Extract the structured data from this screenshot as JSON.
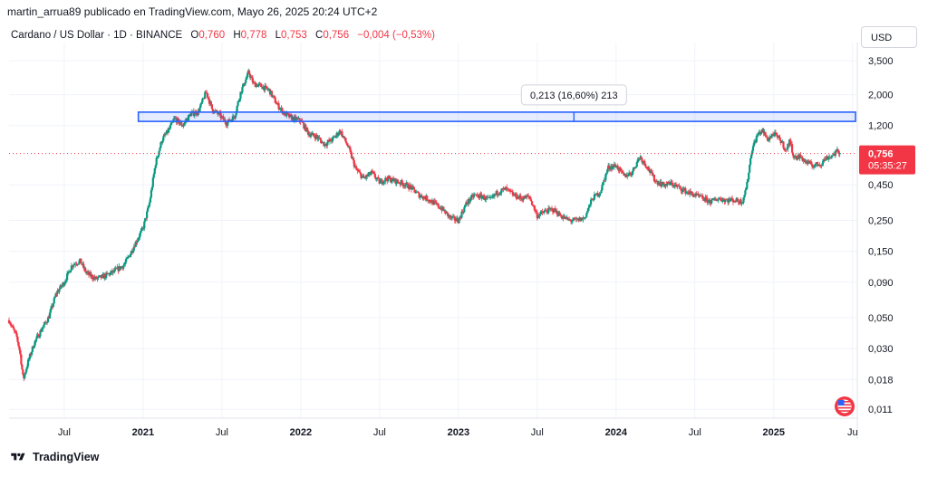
{
  "header": {
    "publisher_line": "martin_arrua89 publicado en TradingView.com, Mayo 26, 2025 20:24 UTC+2"
  },
  "symbol": {
    "name": "Cardano / US Dollar · 1D · BINANCE",
    "o_label": "O",
    "o_value": "0,760",
    "h_label": "H",
    "h_value": "0,778",
    "l_label": "L",
    "l_value": "0,753",
    "c_label": "C",
    "c_value": "0,756",
    "change": "−0,004 (−0,53%)"
  },
  "currency_button": "USD",
  "price_badge": {
    "price": "0,756",
    "countdown": "05:35:27"
  },
  "measure_label": "0,213 (16,60%) 213",
  "footer": {
    "brand": "TradingView"
  },
  "colors": {
    "up": "#089981",
    "down": "#f23645",
    "accent": "#2962ff",
    "grid": "#f0f3fa"
  },
  "chart_data": {
    "type": "candlestick",
    "title": "Cardano / US Dollar · 1D · BINANCE",
    "y_scale": "log",
    "ylim": [
      0.0095,
      4.2
    ],
    "y_ticks": [
      {
        "value": 3.5,
        "label": "3,500"
      },
      {
        "value": 2.0,
        "label": "2,000"
      },
      {
        "value": 1.2,
        "label": "1,200"
      },
      {
        "value": 0.45,
        "label": "0,450"
      },
      {
        "value": 0.25,
        "label": "0,250"
      },
      {
        "value": 0.15,
        "label": "0,150"
      },
      {
        "value": 0.09,
        "label": "0,090"
      },
      {
        "value": 0.05,
        "label": "0,050"
      },
      {
        "value": 0.03,
        "label": "0,030"
      },
      {
        "value": 0.018,
        "label": "0,018"
      },
      {
        "value": 0.011,
        "label": "0,011"
      }
    ],
    "x_range": [
      2020.15,
      2025.53
    ],
    "x_ticks": [
      {
        "value": 2020.5,
        "label": "Jul",
        "bold": false
      },
      {
        "value": 2021.0,
        "label": "2021",
        "bold": true
      },
      {
        "value": 2021.5,
        "label": "Jul",
        "bold": false
      },
      {
        "value": 2022.0,
        "label": "2022",
        "bold": true
      },
      {
        "value": 2022.5,
        "label": "Jul",
        "bold": false
      },
      {
        "value": 2023.0,
        "label": "2023",
        "bold": true
      },
      {
        "value": 2023.5,
        "label": "Jul",
        "bold": false
      },
      {
        "value": 2024.0,
        "label": "2024",
        "bold": true
      },
      {
        "value": 2024.5,
        "label": "Jul",
        "bold": false
      },
      {
        "value": 2025.0,
        "label": "2025",
        "bold": true
      },
      {
        "value": 2025.5,
        "label": "Ju",
        "bold": false
      }
    ],
    "close_series": [
      [
        2020.15,
        0.048
      ],
      [
        2020.2,
        0.036
      ],
      [
        2020.22,
        0.028
      ],
      [
        2020.24,
        0.018
      ],
      [
        2020.27,
        0.024
      ],
      [
        2020.31,
        0.033
      ],
      [
        2020.36,
        0.042
      ],
      [
        2020.4,
        0.05
      ],
      [
        2020.45,
        0.075
      ],
      [
        2020.5,
        0.09
      ],
      [
        2020.55,
        0.12
      ],
      [
        2020.6,
        0.128
      ],
      [
        2020.64,
        0.105
      ],
      [
        2020.7,
        0.095
      ],
      [
        2020.76,
        0.1
      ],
      [
        2020.82,
        0.108
      ],
      [
        2020.88,
        0.12
      ],
      [
        2020.92,
        0.145
      ],
      [
        2020.96,
        0.18
      ],
      [
        2021.0,
        0.22
      ],
      [
        2021.04,
        0.33
      ],
      [
        2021.08,
        0.65
      ],
      [
        2021.12,
        0.95
      ],
      [
        2021.16,
        1.1
      ],
      [
        2021.2,
        1.35
      ],
      [
        2021.25,
        1.2
      ],
      [
        2021.3,
        1.45
      ],
      [
        2021.35,
        1.5
      ],
      [
        2021.4,
        2.1
      ],
      [
        2021.44,
        1.55
      ],
      [
        2021.48,
        1.45
      ],
      [
        2021.53,
        1.25
      ],
      [
        2021.58,
        1.4
      ],
      [
        2021.62,
        2.1
      ],
      [
        2021.67,
        2.9
      ],
      [
        2021.7,
        2.4
      ],
      [
        2021.75,
        2.3
      ],
      [
        2021.8,
        2.15
      ],
      [
        2021.85,
        1.7
      ],
      [
        2021.9,
        1.45
      ],
      [
        2021.95,
        1.35
      ],
      [
        2022.0,
        1.3
      ],
      [
        2022.05,
        1.05
      ],
      [
        2022.1,
        1.0
      ],
      [
        2022.15,
        0.88
      ],
      [
        2022.2,
        0.95
      ],
      [
        2022.25,
        1.1
      ],
      [
        2022.3,
        0.85
      ],
      [
        2022.35,
        0.58
      ],
      [
        2022.4,
        0.5
      ],
      [
        2022.45,
        0.55
      ],
      [
        2022.5,
        0.47
      ],
      [
        2022.55,
        0.5
      ],
      [
        2022.6,
        0.48
      ],
      [
        2022.65,
        0.46
      ],
      [
        2022.7,
        0.43
      ],
      [
        2022.75,
        0.38
      ],
      [
        2022.8,
        0.36
      ],
      [
        2022.85,
        0.33
      ],
      [
        2022.9,
        0.3
      ],
      [
        2022.95,
        0.26
      ],
      [
        2023.0,
        0.25
      ],
      [
        2023.05,
        0.33
      ],
      [
        2023.1,
        0.38
      ],
      [
        2023.15,
        0.37
      ],
      [
        2023.2,
        0.35
      ],
      [
        2023.25,
        0.4
      ],
      [
        2023.3,
        0.42
      ],
      [
        2023.35,
        0.38
      ],
      [
        2023.4,
        0.36
      ],
      [
        2023.45,
        0.37
      ],
      [
        2023.5,
        0.27
      ],
      [
        2023.55,
        0.29
      ],
      [
        2023.6,
        0.3
      ],
      [
        2023.65,
        0.27
      ],
      [
        2023.7,
        0.25
      ],
      [
        2023.75,
        0.25
      ],
      [
        2023.8,
        0.26
      ],
      [
        2023.85,
        0.36
      ],
      [
        2023.9,
        0.4
      ],
      [
        2023.95,
        0.6
      ],
      [
        2024.0,
        0.62
      ],
      [
        2024.05,
        0.52
      ],
      [
        2024.1,
        0.55
      ],
      [
        2024.15,
        0.72
      ],
      [
        2024.2,
        0.6
      ],
      [
        2024.25,
        0.48
      ],
      [
        2024.3,
        0.45
      ],
      [
        2024.35,
        0.46
      ],
      [
        2024.4,
        0.43
      ],
      [
        2024.45,
        0.4
      ],
      [
        2024.5,
        0.38
      ],
      [
        2024.55,
        0.36
      ],
      [
        2024.6,
        0.34
      ],
      [
        2024.65,
        0.36
      ],
      [
        2024.7,
        0.35
      ],
      [
        2024.75,
        0.35
      ],
      [
        2024.8,
        0.34
      ],
      [
        2024.83,
        0.45
      ],
      [
        2024.86,
        0.8
      ],
      [
        2024.9,
        1.05
      ],
      [
        2024.93,
        1.1
      ],
      [
        2024.96,
        0.95
      ],
      [
        2025.0,
        1.05
      ],
      [
        2025.05,
        0.92
      ],
      [
        2025.08,
        0.78
      ],
      [
        2025.1,
        0.95
      ],
      [
        2025.13,
        0.7
      ],
      [
        2025.17,
        0.72
      ],
      [
        2025.2,
        0.66
      ],
      [
        2025.25,
        0.62
      ],
      [
        2025.3,
        0.64
      ],
      [
        2025.33,
        0.7
      ],
      [
        2025.37,
        0.73
      ],
      [
        2025.4,
        0.78
      ],
      [
        2025.42,
        0.756
      ]
    ],
    "current_price": 0.756,
    "measure_range": {
      "low": 1.285,
      "high": 1.498,
      "x_start": 2020.97,
      "x_end": 2025.53
    }
  }
}
